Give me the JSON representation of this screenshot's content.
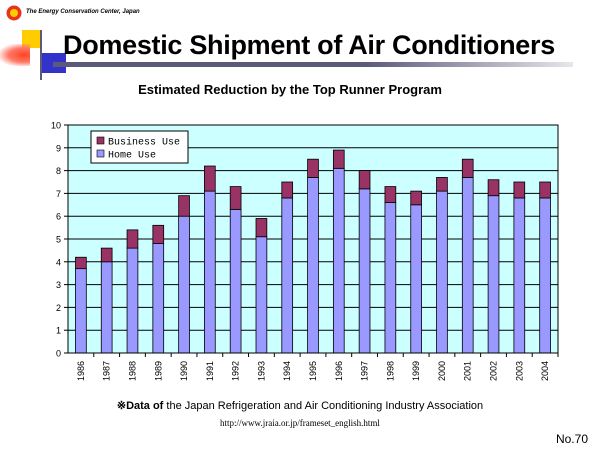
{
  "header": {
    "organization": "The Energy Conservation Center, Japan",
    "title": "Domestic Shipment of Air Conditioners"
  },
  "colors": {
    "home_use": "#9999ff",
    "business_use": "#993366",
    "plot_background": "#ccffff",
    "title_rule": "#5a5a7a",
    "logo_red": "#e8341c",
    "logo_yellow": "#ffcc00"
  },
  "chart_data": {
    "type": "bar",
    "stacked": true,
    "title": "Estimated Reduction by the Top Runner Program",
    "xlabel": "",
    "ylabel": "",
    "ylim": [
      0,
      10
    ],
    "yticks": [
      "0",
      "1",
      "2",
      "3",
      "4",
      "5",
      "6",
      "7",
      "8",
      "9",
      "10"
    ],
    "grid": true,
    "legend_position": "top-left",
    "categories": [
      "1986",
      "1987",
      "1988",
      "1989",
      "1990",
      "1991",
      "1992",
      "1993",
      "1994",
      "1995",
      "1996",
      "1997",
      "1998",
      "1999",
      "2000",
      "2001",
      "2002",
      "2003",
      "2004"
    ],
    "series": [
      {
        "name": "Home Use",
        "values": [
          3.7,
          4.0,
          4.6,
          4.8,
          6.0,
          7.1,
          6.3,
          5.1,
          6.8,
          7.7,
          8.1,
          7.2,
          6.6,
          6.5,
          7.1,
          7.7,
          6.9,
          6.8,
          6.8
        ]
      },
      {
        "name": "Business Use",
        "values": [
          0.5,
          0.6,
          0.8,
          0.8,
          0.9,
          1.1,
          1.0,
          0.8,
          0.7,
          0.8,
          0.8,
          0.8,
          0.7,
          0.6,
          0.6,
          0.8,
          0.7,
          0.7,
          0.7
        ]
      }
    ]
  },
  "footer": {
    "note_mark": "※",
    "note_bold": "Data of",
    "note_text": " the Japan Refrigeration and Air Conditioning Industry Association",
    "url": "http://www.jraia.or.jp/frameset_english.html",
    "page_number": "No.70"
  }
}
